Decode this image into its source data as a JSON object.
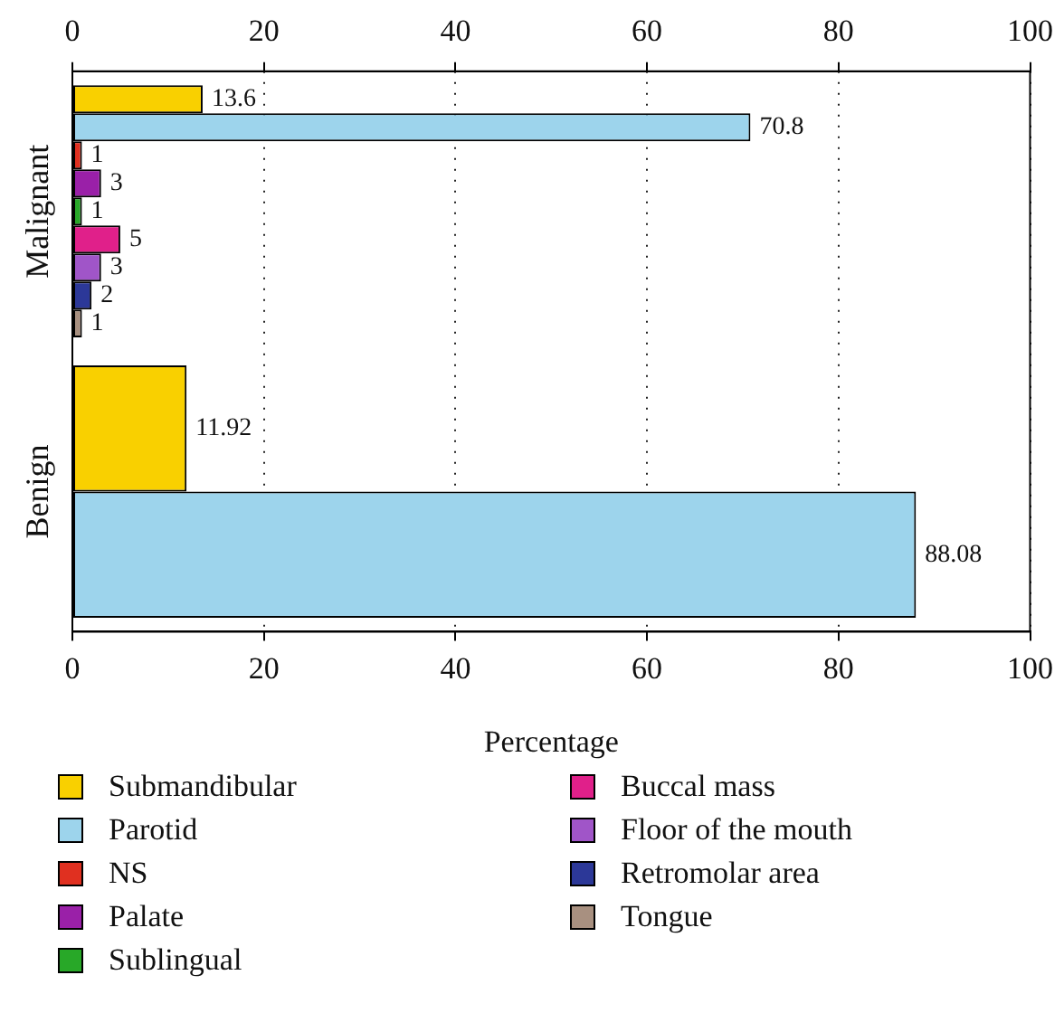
{
  "chart_data": {
    "type": "bar",
    "orientation": "horizontal",
    "categories": [
      "Malignant",
      "Benign"
    ],
    "series": [
      {
        "name": "Submandibular",
        "color": "#f9d000",
        "values": [
          13.6,
          11.92
        ]
      },
      {
        "name": "Parotid",
        "color": "#9dd4ec",
        "values": [
          70.8,
          88.08
        ]
      },
      {
        "name": "NS",
        "color": "#e03020",
        "values": [
          1,
          null
        ]
      },
      {
        "name": "Palate",
        "color": "#9a20a8",
        "values": [
          3,
          null
        ]
      },
      {
        "name": "Sublingual",
        "color": "#28a828",
        "values": [
          1,
          null
        ]
      },
      {
        "name": "Buccal mass",
        "color": "#e0208a",
        "values": [
          5,
          null
        ]
      },
      {
        "name": "Floor of the mouth",
        "color": "#a055c8",
        "values": [
          3,
          null
        ]
      },
      {
        "name": "Retromolar area",
        "color": "#2c3898",
        "values": [
          2,
          null
        ]
      },
      {
        "name": "Tongue",
        "color": "#a89080",
        "values": [
          1,
          null
        ]
      }
    ],
    "xlabel": "Percentage",
    "xlim": [
      0,
      100
    ],
    "xticks": [
      0,
      20,
      40,
      60,
      80,
      100
    ],
    "x2lim": [
      0,
      100
    ],
    "x2ticks": [
      0,
      20,
      40,
      60,
      80,
      100
    ],
    "grid": "x",
    "line_style": "dotted",
    "legend": "bottom",
    "data_labels": true
  }
}
